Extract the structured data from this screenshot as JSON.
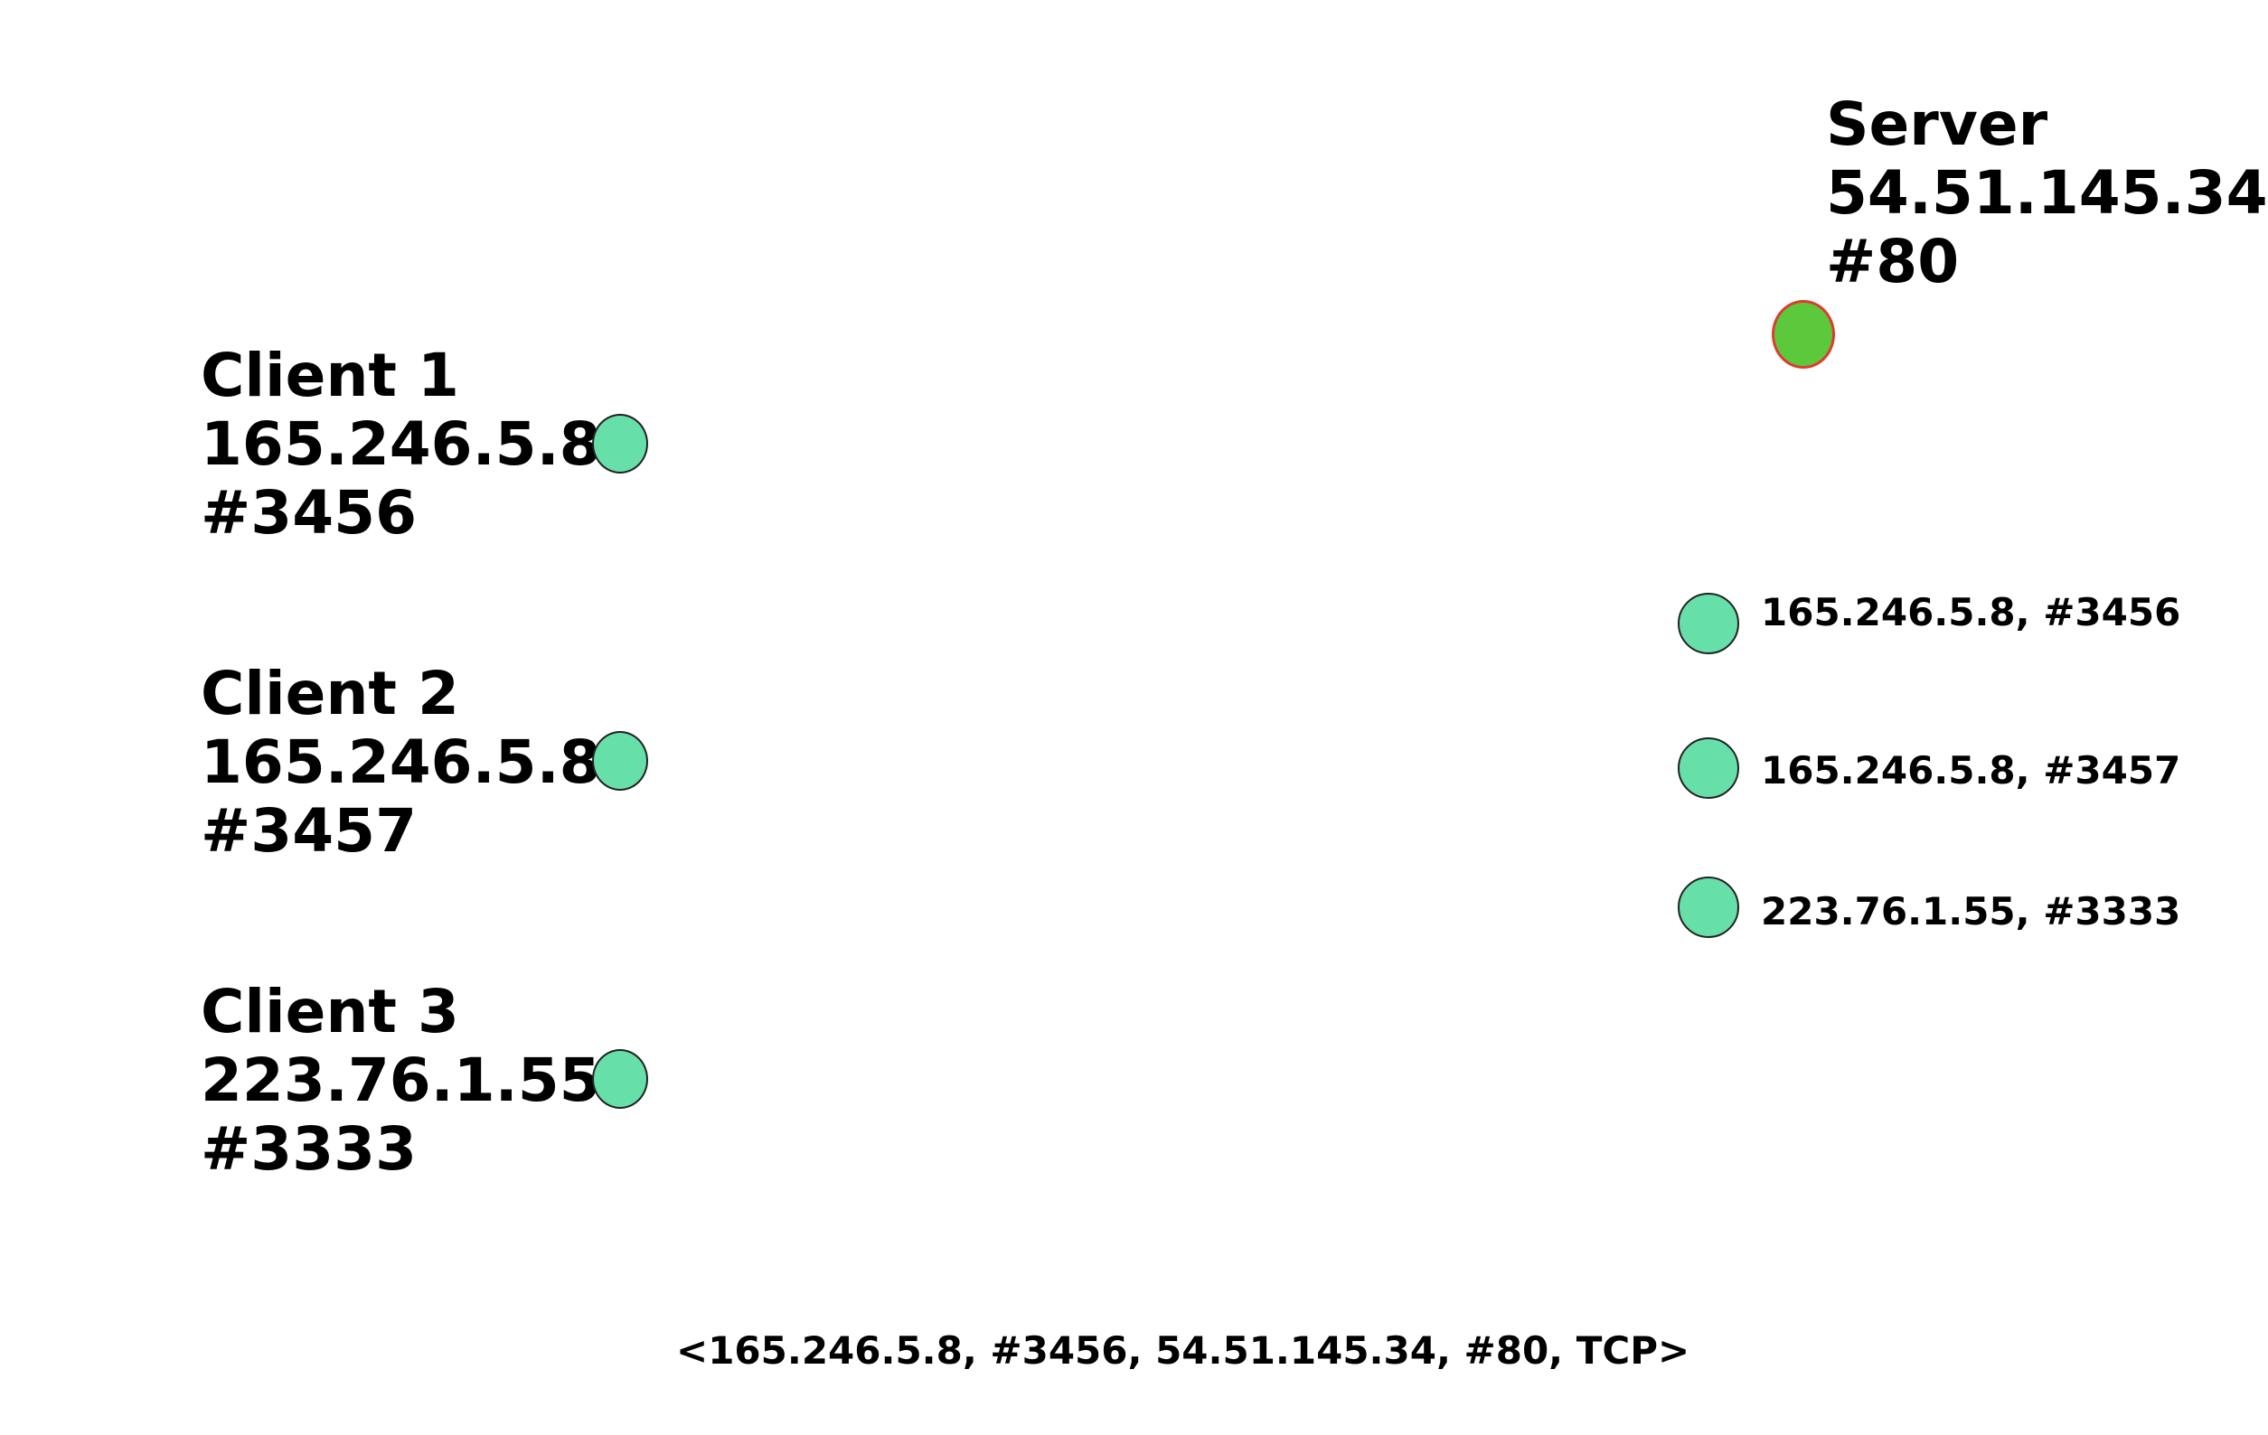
{
  "server": {
    "name": "Server",
    "ip": "54.51.145.34",
    "port": "#80",
    "node_color": "#5cc83c",
    "node_border": "#e03a2e"
  },
  "clients": [
    {
      "name": "Client 1",
      "ip": "165.246.5.8",
      "port": "#3456"
    },
    {
      "name": "Client 2",
      "ip": "165.246.5.8",
      "port": "#3457"
    },
    {
      "name": "Client 3",
      "ip": "223.76.1.55",
      "port": "#3333"
    }
  ],
  "server_sockets": [
    {
      "label": "165.246.5.8, #3456"
    },
    {
      "label": "165.246.5.8, #3457"
    },
    {
      "label": "223.76.1.55, #3333"
    }
  ],
  "connection_tuple": "<165.246.5.8, #3456, 54.51.145.34, #80, TCP>",
  "colors": {
    "socket_fill": "#66dfa8"
  }
}
